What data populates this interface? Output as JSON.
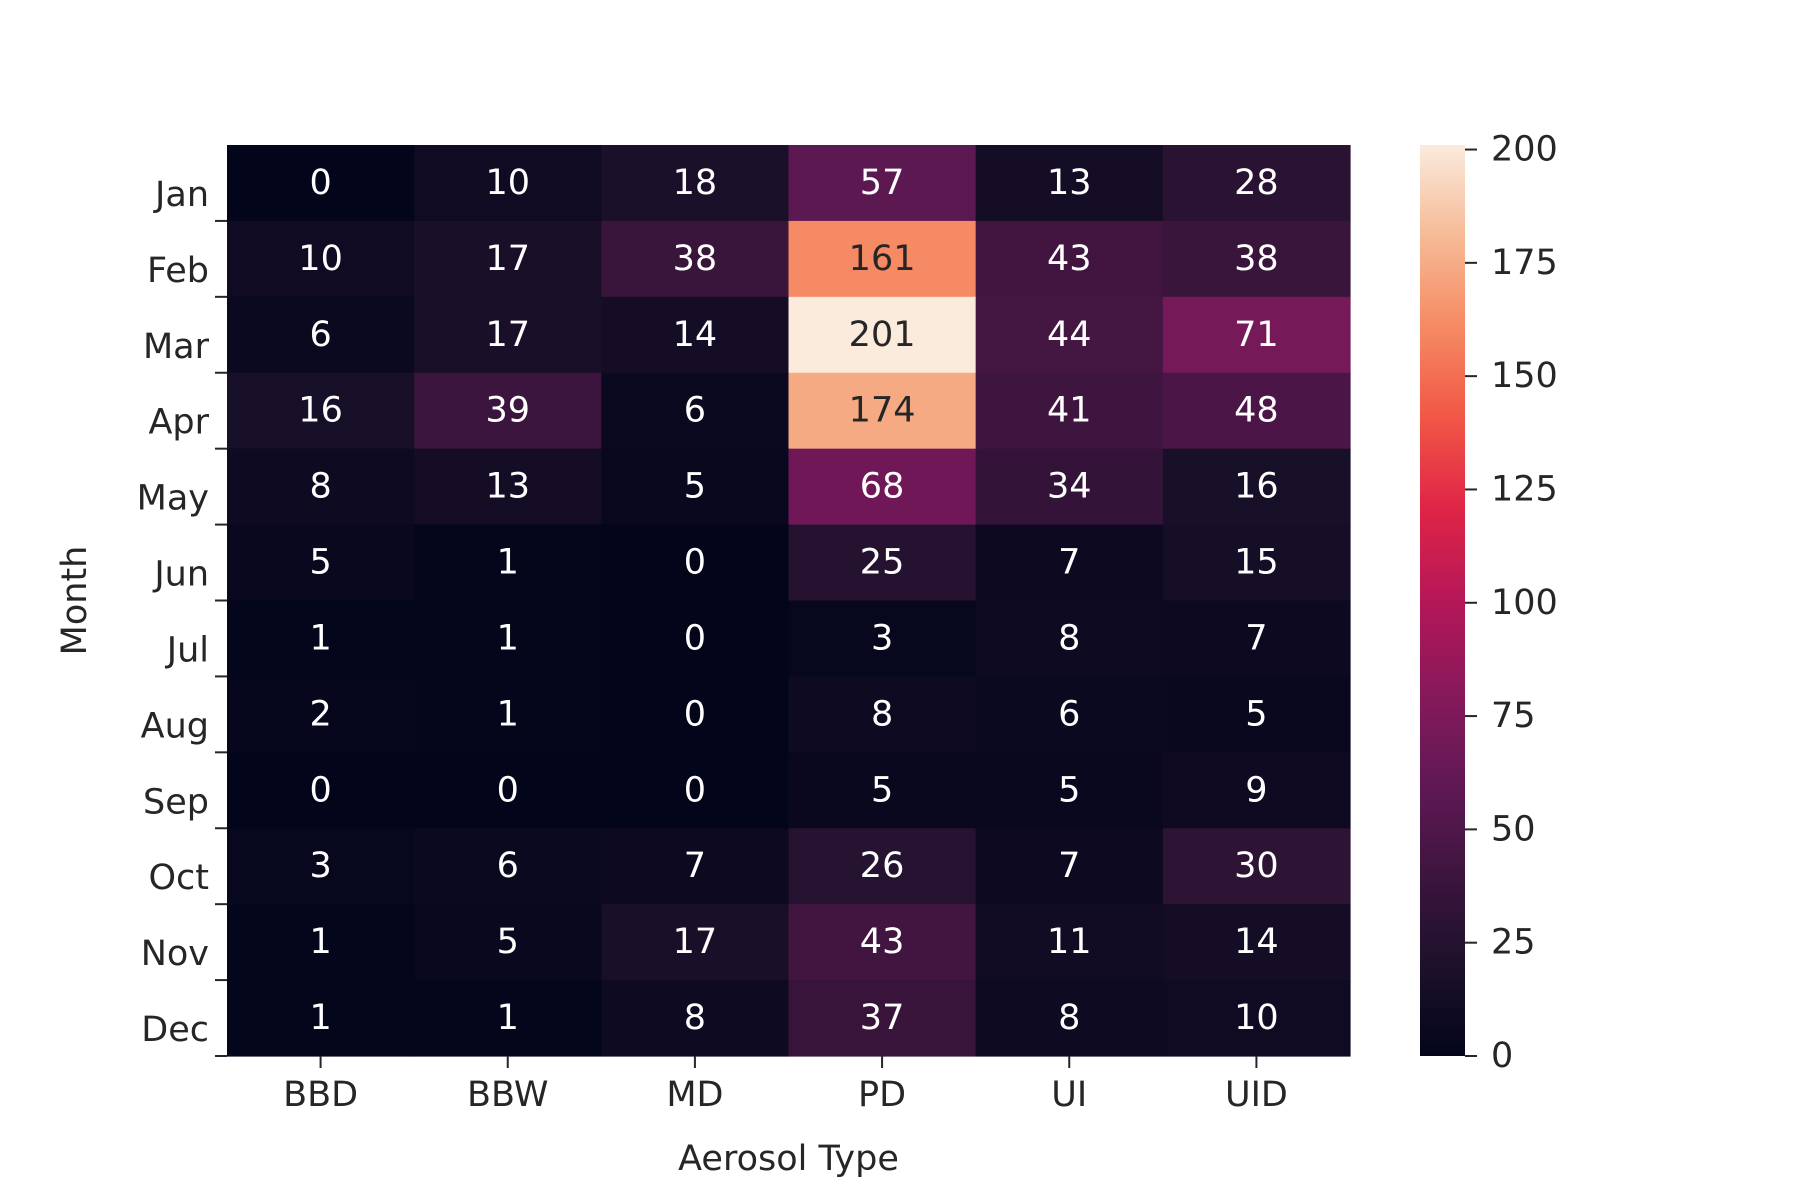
{
  "chart_data": {
    "type": "heatmap",
    "title": "",
    "xlabel": "Aerosol Type",
    "ylabel": "Month",
    "x_categories": [
      "BBD",
      "BBW",
      "MD",
      "PD",
      "UI",
      "UID"
    ],
    "y_categories": [
      "Jan",
      "Feb",
      "Mar",
      "Apr",
      "May",
      "Jun",
      "Jul",
      "Aug",
      "Sep",
      "Oct",
      "Nov",
      "Dec"
    ],
    "values": [
      [
        0,
        10,
        18,
        57,
        13,
        28
      ],
      [
        10,
        17,
        38,
        161,
        43,
        38
      ],
      [
        6,
        17,
        14,
        201,
        44,
        71
      ],
      [
        16,
        39,
        6,
        174,
        41,
        48
      ],
      [
        8,
        13,
        5,
        68,
        34,
        16
      ],
      [
        5,
        1,
        0,
        25,
        7,
        15
      ],
      [
        1,
        1,
        0,
        3,
        8,
        7
      ],
      [
        2,
        1,
        0,
        8,
        6,
        5
      ],
      [
        0,
        0,
        0,
        5,
        5,
        9
      ],
      [
        3,
        6,
        7,
        26,
        7,
        30
      ],
      [
        1,
        5,
        17,
        43,
        11,
        14
      ],
      [
        1,
        1,
        8,
        37,
        8,
        10
      ]
    ],
    "annotated": true,
    "colormap": "rocket",
    "colorbar": {
      "range": [
        0,
        201
      ],
      "ticks": [
        0,
        25,
        50,
        75,
        100,
        125,
        150,
        175,
        200
      ],
      "tick_labels": [
        "0",
        "25",
        "50",
        "75",
        "100",
        "125",
        "150",
        "175",
        "200"
      ]
    },
    "text_colors": {
      "light": "#ffffff",
      "dark": "#262626"
    }
  }
}
